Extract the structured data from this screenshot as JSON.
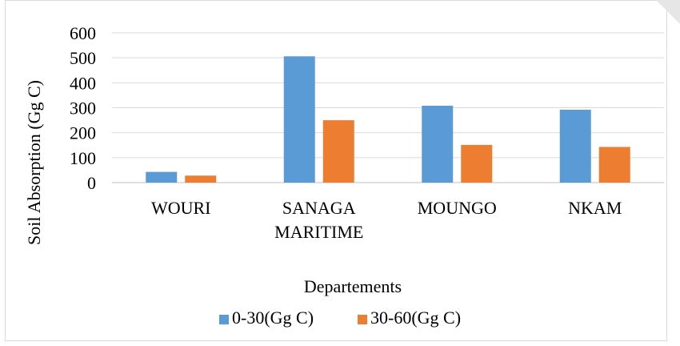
{
  "chart_data": {
    "type": "bar",
    "title": "",
    "xlabel": "Departements",
    "ylabel": "Soil Absorption (Gg C)",
    "categories": [
      "WOURI",
      "SANAGA MARITIME",
      "MOUNGO",
      "NKAM"
    ],
    "category_lines": [
      [
        "WOURI"
      ],
      [
        "SANAGA",
        "MARITIME"
      ],
      [
        "MOUNGO"
      ],
      [
        "NKAM"
      ]
    ],
    "series": [
      {
        "name": "0-30(Gg C)",
        "color": "#5b9bd5",
        "values": [
          43,
          506,
          308,
          292
        ]
      },
      {
        "name": "30-60(Gg C)",
        "color": "#ed7d31",
        "values": [
          28,
          250,
          151,
          143
        ]
      }
    ],
    "ylim": [
      0,
      600
    ],
    "yticks": [
      0,
      100,
      200,
      300,
      400,
      500,
      600
    ],
    "grid": true,
    "legend": "bottom"
  }
}
